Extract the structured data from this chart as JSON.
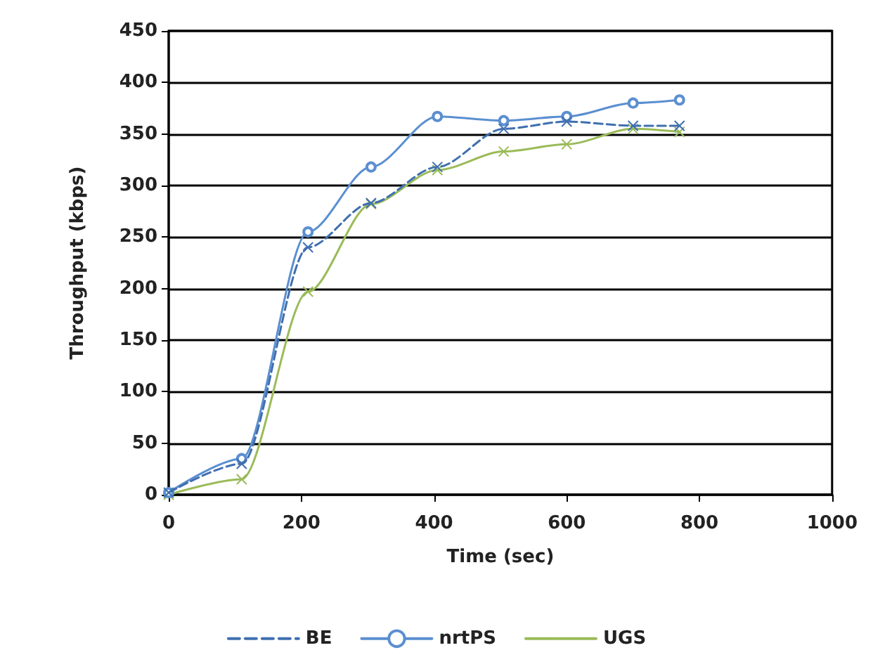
{
  "chart_data": {
    "type": "line",
    "xlabel": "Time (sec)",
    "ylabel": "Throughput (kbps)",
    "xlim": [
      0,
      1000
    ],
    "xticks": [
      0,
      200,
      400,
      600,
      800,
      1000
    ],
    "ylim": [
      0,
      450
    ],
    "yticks": [
      0,
      50,
      100,
      150,
      200,
      250,
      300,
      350,
      400,
      450
    ],
    "grid": "y",
    "legend": "bottom",
    "series": [
      {
        "name": "BE",
        "color": "#3f6fb0",
        "line_style": "dashed",
        "marker": "cross",
        "x": [
          0,
          110,
          210,
          305,
          405,
          505,
          600,
          700,
          770
        ],
        "values": [
          2,
          30,
          240,
          283,
          318,
          355,
          362,
          358,
          358
        ]
      },
      {
        "name": "nrtPS",
        "color": "#5b8fd0",
        "line_style": "solid",
        "marker": "circle",
        "x": [
          0,
          110,
          210,
          305,
          405,
          505,
          600,
          700,
          770
        ],
        "values": [
          2,
          35,
          255,
          318,
          367,
          363,
          367,
          380,
          383
        ]
      },
      {
        "name": "UGS",
        "color": "#9bbb59",
        "line_style": "solid",
        "marker": "cross",
        "x": [
          0,
          110,
          210,
          305,
          405,
          505,
          600,
          700,
          770
        ],
        "values": [
          0,
          15,
          197,
          282,
          315,
          333,
          340,
          355,
          352
        ]
      }
    ]
  }
}
